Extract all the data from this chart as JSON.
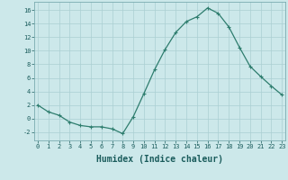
{
  "x": [
    0,
    1,
    2,
    3,
    4,
    5,
    6,
    7,
    8,
    9,
    10,
    11,
    12,
    13,
    14,
    15,
    16,
    17,
    18,
    19,
    20,
    21,
    22,
    23
  ],
  "y": [
    2,
    1,
    0.5,
    -0.5,
    -1,
    -1.2,
    -1.2,
    -1.5,
    -2.2,
    0.3,
    3.7,
    7.2,
    10.2,
    12.7,
    14.3,
    15.0,
    16.3,
    15.5,
    13.5,
    10.5,
    7.7,
    6.2,
    4.8,
    3.5
  ],
  "line_color": "#2e7d6e",
  "marker": "+",
  "marker_size": 3,
  "marker_lw": 0.8,
  "line_width": 0.9,
  "bg_color": "#cce8ea",
  "grid_color": "#aacfd2",
  "xlabel": "Humidex (Indice chaleur)",
  "xlabel_fontsize": 7,
  "tick_fontsize": 5,
  "yticks": [
    -2,
    0,
    2,
    4,
    6,
    8,
    10,
    12,
    14,
    16
  ],
  "xticks": [
    0,
    1,
    2,
    3,
    4,
    5,
    6,
    7,
    8,
    9,
    10,
    11,
    12,
    13,
    14,
    15,
    16,
    17,
    18,
    19,
    20,
    21,
    22,
    23
  ],
  "xlim": [
    -0.3,
    23.3
  ],
  "ylim": [
    -3.2,
    17.2
  ]
}
